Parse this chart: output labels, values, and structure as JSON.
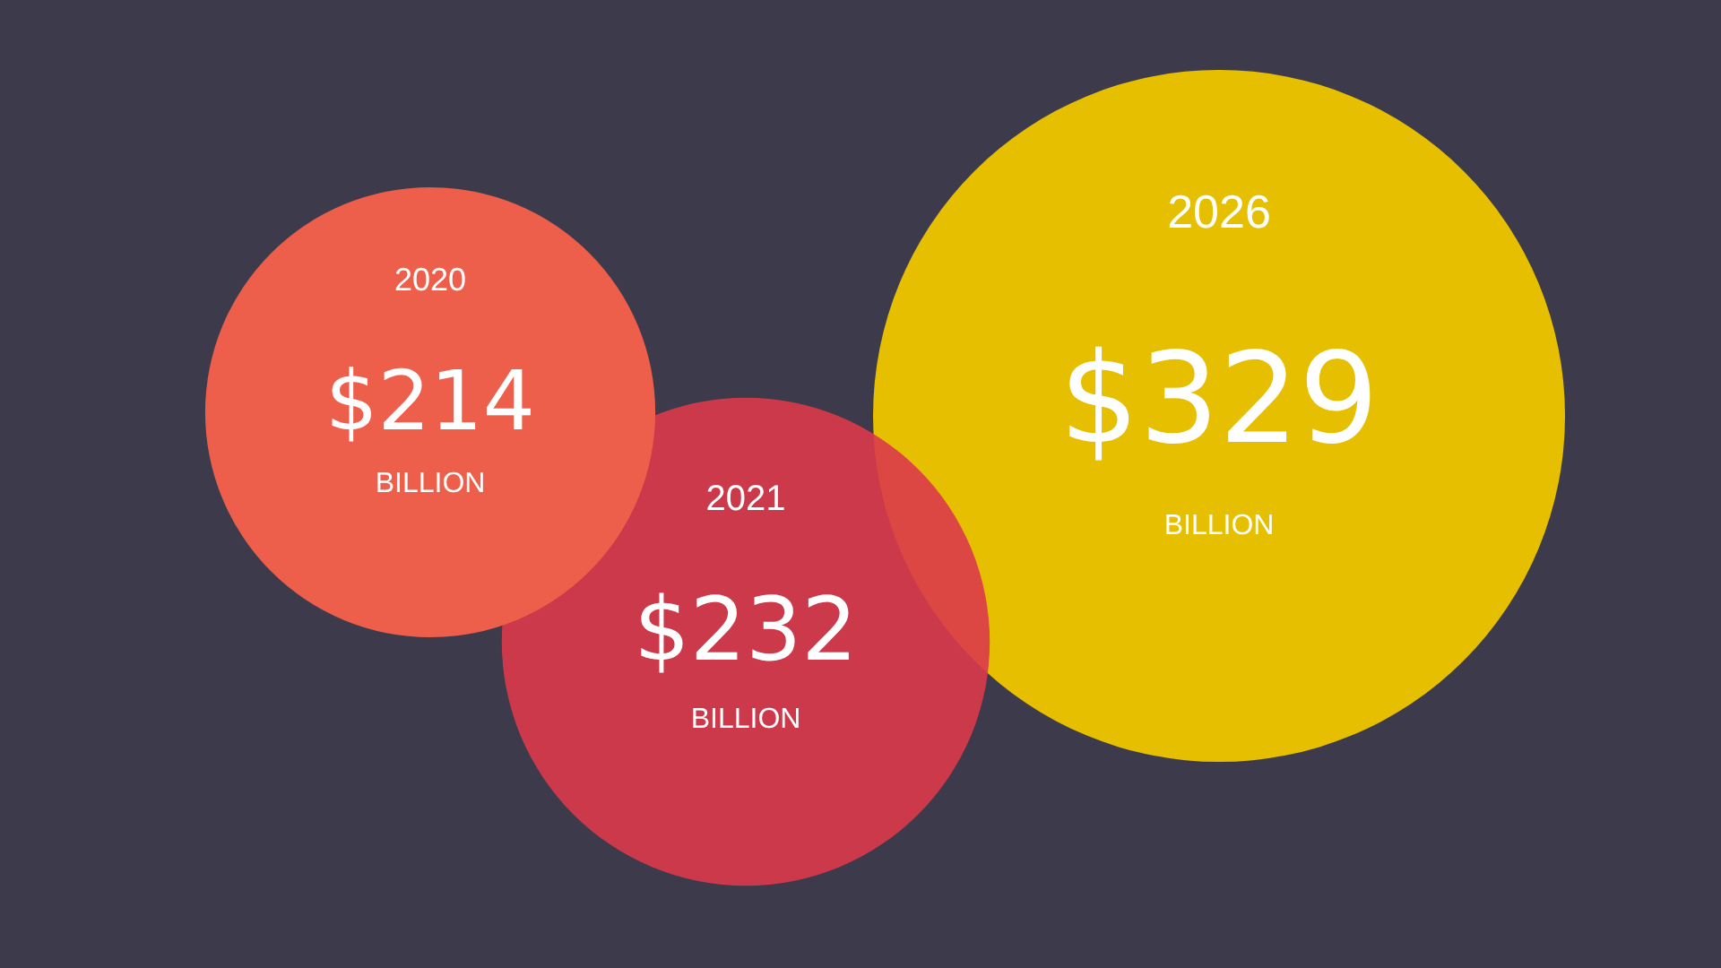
{
  "chart_data": {
    "type": "other",
    "categories": [
      "2020",
      "2021",
      "2026"
    ],
    "values": [
      214,
      232,
      329
    ],
    "colors": [
      "#ee5f4b",
      "#dc3a4a",
      "#e6c000"
    ],
    "value_labels": [
      "$214",
      "$232",
      "$329"
    ],
    "annotations": [
      "BILLION",
      "BILLION",
      "BILLION"
    ]
  }
}
